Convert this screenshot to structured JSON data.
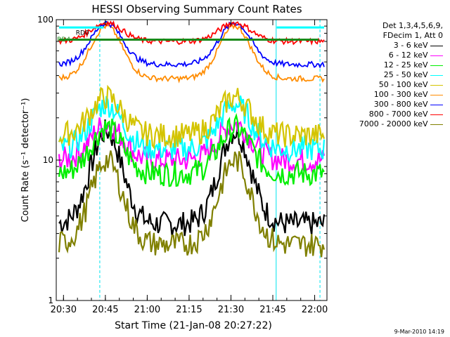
{
  "chart_data": {
    "type": "line",
    "title": "HESSI Observing Summary Count Rates",
    "xlabel": "Start Time (21-Jan-08 20:27:22)",
    "ylabel": "Count Rate (s⁻¹ detector⁻¹)",
    "yscale": "log",
    "ylim": [
      1,
      100
    ],
    "xlim_minutes_after_2027": [
      0,
      97
    ],
    "x_ticks": [
      "20:30",
      "20:45",
      "21:00",
      "21:15",
      "21:30",
      "21:45",
      "22:00"
    ],
    "y_ticks": [
      "1",
      "10",
      "100"
    ],
    "legend_header": [
      "Det 1,3,4,5,6,9,",
      "FDecim 1, Att 0"
    ],
    "series": [
      {
        "name": "3 - 6 keV",
        "color": "#000000",
        "peak": 16,
        "base": 3.5
      },
      {
        "name": "6 - 12 keV",
        "color": "#ff00ff",
        "peak": 18,
        "base": 10
      },
      {
        "name": "12 - 25 keV",
        "color": "#00ee00",
        "peak": 17,
        "base": 8
      },
      {
        "name": "25 - 50 keV",
        "color": "#00ffff",
        "peak": 25,
        "base": 12
      },
      {
        "name": "50 - 100 keV",
        "color": "#d4c400",
        "peak": 28,
        "base": 15
      },
      {
        "name": "100 - 300 keV",
        "color": "#ff8c00",
        "peak": 90,
        "base": 38
      },
      {
        "name": "300 - 800 keV",
        "color": "#0000ff",
        "peak": 95,
        "base": 48
      },
      {
        "name": "800 - 7000 keV",
        "color": "#ff0000",
        "peak": 95,
        "base": 70
      },
      {
        "name": "7000 - 20000 keV",
        "color": "#808000",
        "peak": 10,
        "base": 2.5
      }
    ],
    "annotations": [
      "RD0",
      "RD4"
    ],
    "footer_date": "9-Mar-2010 14:19"
  }
}
